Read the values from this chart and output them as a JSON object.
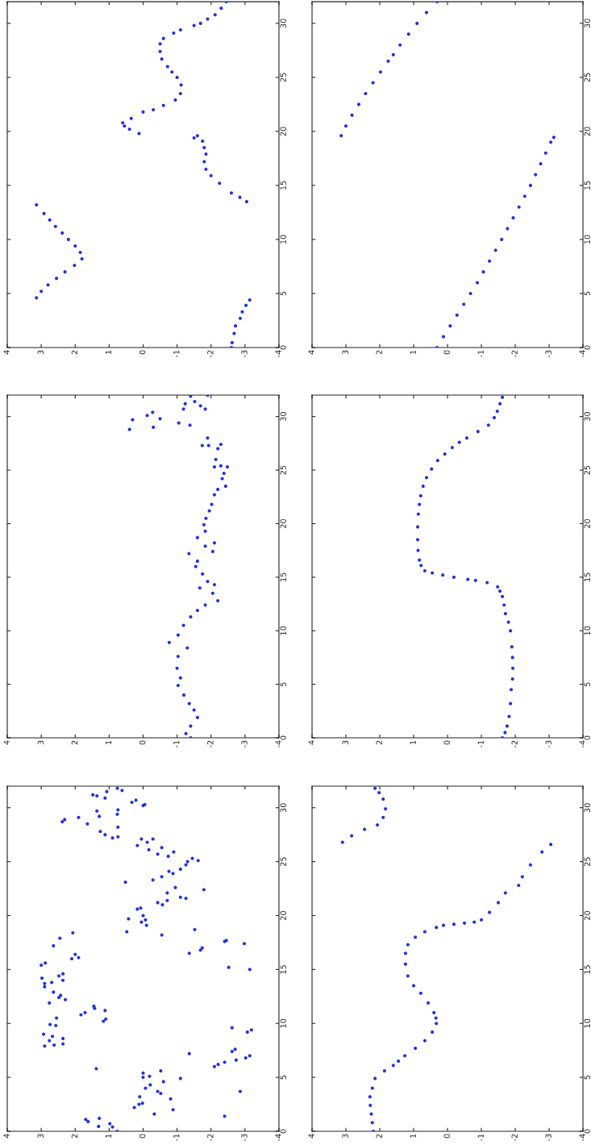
{
  "chart_data": [
    {
      "type": "scatter",
      "color": "#2233dd",
      "marker": "circle",
      "xlim": [
        4,
        -4
      ],
      "ylim": [
        0,
        32
      ],
      "yticks": [
        0,
        5,
        10,
        15,
        20,
        25,
        30
      ],
      "xticks": [
        4,
        3,
        2,
        1,
        0,
        -1,
        -2,
        -3,
        -4
      ],
      "values": [
        0,
        0.45,
        1.3,
        2.0,
        2.7,
        3.3,
        3.9,
        4.4,
        4.6,
        5.2,
        5.8,
        6.4,
        7.0,
        7.6,
        8.2,
        8.8,
        9.4,
        10.0,
        10.6,
        11.2,
        11.8,
        12.4,
        13.2,
        13.5,
        13.9,
        14.3,
        15.2,
        15.9,
        16.5,
        17.2,
        17.9,
        18.5,
        19.1,
        19.4,
        19.6,
        19.8,
        20.2,
        20.5,
        20.8,
        21.2,
        21.8,
        22.0,
        22.4,
        22.9,
        23.5,
        24.3,
        25.0,
        25.5,
        26.0,
        26.7,
        27.4,
        28.1,
        28.6,
        29.1,
        29.4,
        29.8,
        30.0,
        30.4,
        30.8,
        31.4,
        32.0
      ],
      "x": [
        -2.6,
        -2.62,
        -2.68,
        -2.72,
        -2.86,
        -2.92,
        -3.03,
        -3.14,
        3.14,
        3.0,
        2.8,
        2.55,
        2.3,
        2.02,
        1.8,
        1.85,
        2.0,
        2.2,
        2.38,
        2.58,
        2.75,
        2.92,
        3.14,
        -3.05,
        -2.85,
        -2.6,
        -2.25,
        -2.0,
        -1.85,
        -1.8,
        -1.85,
        -1.8,
        -1.75,
        -1.5,
        -1.6,
        0.12,
        0.4,
        0.55,
        0.6,
        0.35,
        0.0,
        -0.3,
        -0.6,
        -0.95,
        -1.1,
        -1.12,
        -1.0,
        -0.85,
        -0.72,
        -0.55,
        -0.5,
        -0.5,
        -0.6,
        -0.9,
        -1.1,
        -1.5,
        -1.69,
        -1.9,
        -2.12,
        -2.3,
        -2.45
      ]
    },
    {
      "type": "scatter",
      "color": "#2233dd",
      "marker": "circle",
      "xlim": [
        4,
        -4
      ],
      "ylim": [
        0,
        32
      ],
      "yticks": [
        0,
        5,
        10,
        15,
        20,
        25,
        30
      ],
      "xticks": [
        4,
        3,
        2,
        1,
        0,
        -1,
        -2,
        -3,
        -4
      ],
      "values": [
        0,
        1,
        2,
        3,
        4,
        5,
        6,
        7,
        8,
        9,
        10,
        11,
        12,
        13,
        14,
        15,
        16,
        17,
        18,
        19,
        19.45,
        19.6,
        20.5,
        21.5,
        22.5,
        23.5,
        24.5,
        25.5,
        26.5,
        27.1,
        28,
        29,
        30,
        31,
        32
      ],
      "x": [
        0.31,
        0.12,
        -0.08,
        -0.28,
        -0.48,
        -0.68,
        -0.88,
        -1.06,
        -1.24,
        -1.42,
        -1.6,
        -1.77,
        -1.94,
        -2.11,
        -2.28,
        -2.45,
        -2.6,
        -2.75,
        -2.9,
        -3.05,
        -3.14,
        3.14,
        3.0,
        2.82,
        2.62,
        2.42,
        2.2,
        1.98,
        1.75,
        1.6,
        1.4,
        1.15,
        0.9,
        0.62,
        0.31
      ]
    },
    {
      "type": "scatter",
      "color": "#2233dd",
      "marker": "circle",
      "xlim": [
        4,
        -4
      ],
      "ylim": [
        0,
        32
      ],
      "yticks": [
        0,
        5,
        10,
        15,
        20,
        25,
        30
      ],
      "xticks": [
        4,
        3,
        2,
        1,
        0,
        -1,
        -2,
        -3,
        -4
      ],
      "values": [
        0.0,
        0.4,
        1.1,
        1.9,
        2.6,
        3.2,
        4.0,
        4.9,
        5.6,
        6.5,
        7.6,
        8.4,
        8.9,
        9.6,
        10.5,
        11.3,
        11.9,
        12.4,
        12.8,
        13.5,
        14.0,
        14.3,
        14.6,
        15.3,
        16.0,
        16.5,
        17.2,
        17.4,
        17.9,
        18.2,
        18.7,
        19.3,
        19.9,
        20.5,
        21.2,
        21.8,
        22.7,
        23.2,
        23.5,
        24.2,
        24.7,
        25.3,
        25.4,
        25.3,
        26.0,
        27.0,
        27.4,
        27.3,
        27.3,
        28.0,
        28.8,
        29.0,
        29.2,
        29.4,
        29.7,
        29.8,
        30.1,
        30.4,
        30.7,
        30.7,
        31.0,
        31.2,
        31.4,
        31.9,
        32.0
      ],
      "x": [
        -1.4,
        -1.26,
        -1.4,
        -1.6,
        -1.5,
        -1.36,
        -1.2,
        -1.03,
        -1.1,
        -1.0,
        -1.03,
        -1.3,
        -0.77,
        -1.03,
        -1.19,
        -1.4,
        -1.6,
        -1.83,
        -2.2,
        -2.05,
        -1.67,
        -2.1,
        -1.9,
        -1.75,
        -1.55,
        -1.6,
        -1.35,
        -2.05,
        -1.83,
        -2.1,
        -1.6,
        -1.83,
        -1.79,
        -1.85,
        -1.95,
        -2.02,
        -2.1,
        -2.2,
        -2.43,
        -2.33,
        -2.38,
        -2.48,
        -2.29,
        -2.1,
        -2.14,
        -2.2,
        -2.29,
        -1.93,
        -1.74,
        -1.9,
        0.4,
        -0.3,
        -1.38,
        -1.05,
        0.31,
        -0.5,
        -0.12,
        -0.28,
        -1.19,
        -1.83,
        -1.69,
        -1.24,
        -1.52,
        -1.4,
        -1.9
      ]
    },
    {
      "type": "scatter",
      "color": "#2233dd",
      "marker": "circle",
      "xlim": [
        4,
        -4
      ],
      "ylim": [
        0,
        32
      ],
      "yticks": [
        0,
        5,
        10,
        15,
        20,
        25,
        30
      ],
      "xticks": [
        4,
        3,
        2,
        1,
        0,
        -1,
        -2,
        -3,
        -4
      ],
      "values": [
        0,
        0.5,
        1.1,
        2,
        3.2,
        4.5,
        5.5,
        6.5,
        7.5,
        8.5,
        10,
        10.8,
        11.6,
        12.4,
        13.2,
        13.7,
        14.1,
        14.5,
        14.7,
        14.8,
        15.0,
        15.2,
        15.4,
        15.6,
        16.1,
        16.6,
        17.5,
        18.5,
        19.7,
        20.9,
        21.8,
        22.6,
        23.5,
        24.3,
        25.1,
        25.9,
        26.5,
        27.1,
        27.6,
        28.0,
        28.6,
        29.2,
        29.9,
        30.5,
        31.2,
        31.8
      ],
      "x": [
        -1.62,
        -1.7,
        -1.76,
        -1.82,
        -1.86,
        -1.88,
        -1.92,
        -1.93,
        -1.92,
        -1.9,
        -1.86,
        -1.8,
        -1.71,
        -1.67,
        -1.62,
        -1.55,
        -1.48,
        -1.17,
        -0.83,
        -0.6,
        -0.19,
        0.14,
        0.45,
        0.67,
        0.78,
        0.83,
        0.87,
        0.88,
        0.88,
        0.86,
        0.83,
        0.79,
        0.72,
        0.62,
        0.47,
        0.29,
        0.08,
        -0.14,
        -0.35,
        -0.57,
        -0.9,
        -1.21,
        -1.38,
        -1.47,
        -1.55,
        -1.62
      ]
    },
    {
      "type": "scatter",
      "color": "#2233dd",
      "marker": "circle",
      "xlim": [
        4,
        -4
      ],
      "ylim": [
        0,
        32
      ],
      "yticks": [
        0,
        5,
        10,
        15,
        20,
        25,
        30
      ],
      "xticks": [
        4,
        3,
        2,
        1,
        0,
        -1,
        -2,
        -3,
        -4
      ],
      "values": [
        0,
        0.4,
        0.7,
        0.45,
        1.2,
        0.9,
        1.1,
        2.2,
        2.5,
        3.2,
        2.6,
        1.6,
        4.0,
        4.3,
        3.7,
        3.5,
        4.6,
        5.6,
        5.1,
        5.4,
        5.0,
        3.0,
        2.0,
        4.9,
        7.2,
        5.8,
        7.9,
        9.0,
        8.4,
        8.0,
        8.8,
        8.6,
        8.1,
        9.8,
        9.9,
        10.5,
        10.8,
        11.0,
        11.6,
        11.4,
        11.2,
        10.2,
        10.4,
        11.9,
        12.4,
        12.6,
        12.2,
        12.9,
        13.4,
        13.7,
        14.2,
        15.4,
        15.6,
        14.4,
        14.6,
        14.0,
        13.8,
        17.2,
        17.9,
        16.0,
        16.4,
        16.1,
        18.4,
        16.5,
        18.7,
        16.8,
        18.5,
        19.7,
        23.1,
        20.6,
        20.7,
        20.0,
        19.4,
        19.1,
        19.6,
        18.2,
        21.2,
        21.0,
        21.4,
        22.1,
        22.6,
        21.7,
        21.6,
        23.3,
        23.6,
        24.1,
        23.9,
        24.3,
        24.7,
        25.0,
        25.3,
        25.1,
        25.7,
        25.5,
        25.9,
        26.3,
        26.1,
        26.8,
        27.1,
        27.1,
        26.5,
        27.2,
        27.3,
        28.2,
        29.4,
        29.8,
        27.5,
        27.8,
        29.7,
        29.2,
        28.5,
        29.1,
        28.9,
        28.7,
        31.2,
        31.1,
        30.9,
        31.5,
        31.8,
        31.6,
        30.5,
        30.7,
        30.2,
        30.3,
        1.4,
        3.7,
        6.0,
        6.2,
        6.4,
        7.4,
        6.6,
        7.6,
        6.8,
        7.0,
        9.2,
        9.4,
        9.6,
        15.2,
        15.0,
        17.6,
        17.7,
        17.4,
        17.0,
        22.4
      ],
      "x": [
        0.76,
        0.9,
        0.98,
        1.31,
        1.29,
        1.62,
        1.69,
        0.26,
        0.12,
        0.1,
        0.02,
        -0.33,
        -0.07,
        -0.21,
        -0.43,
        -0.52,
        -0.6,
        -0.52,
        -0.19,
        0.0,
        0.0,
        -0.81,
        -0.88,
        -1.1,
        -1.36,
        1.38,
        2.9,
        2.93,
        2.76,
        2.62,
        2.67,
        2.36,
        2.36,
        2.57,
        2.74,
        2.55,
        1.83,
        1.71,
        1.45,
        1.43,
        1.12,
        1.17,
        1.1,
        2.76,
        2.48,
        2.43,
        2.29,
        2.64,
        2.9,
        2.9,
        2.98,
        3.0,
        2.88,
        2.48,
        2.36,
        2.36,
        2.69,
        2.64,
        2.45,
        2.1,
        2.0,
        1.9,
        2.07,
        -1.36,
        -1.52,
        -1.69,
        0.48,
        0.43,
        0.52,
        0.17,
        0.07,
        0.0,
        0.05,
        -0.1,
        -0.07,
        -0.55,
        -0.43,
        -0.57,
        -0.71,
        -0.71,
        -0.95,
        -1.1,
        -1.26,
        -0.29,
        -0.55,
        -0.76,
        -0.88,
        -1.1,
        -1.26,
        -1.31,
        -1.45,
        -1.62,
        -0.43,
        -0.74,
        -0.9,
        -0.55,
        -0.17,
        -0.12,
        -0.29,
        0.05,
        0.17,
        0.9,
        0.74,
        0.74,
        0.76,
        0.74,
        1.12,
        1.26,
        1.36,
        1.29,
        1.64,
        1.9,
        2.31,
        2.38,
        1.48,
        1.36,
        1.12,
        1.07,
        0.76,
        0.62,
        0.33,
        0.21,
        0.0,
        -0.05,
        -2.4,
        -2.86,
        -2.1,
        -2.21,
        -2.4,
        -2.62,
        -2.74,
        -2.71,
        -3.02,
        -3.14,
        -3.07,
        -3.19,
        -2.62,
        -2.52,
        -3.14,
        -2.4,
        -2.45,
        -2.98,
        -1.74,
        -1.79
      ]
    },
    {
      "type": "scatter",
      "color": "#2233dd",
      "marker": "circle",
      "xlim": [
        4,
        -4
      ],
      "ylim": [
        0,
        32
      ],
      "yticks": [
        0,
        5,
        10,
        15,
        20,
        25,
        30
      ],
      "xticks": [
        4,
        3,
        2,
        1,
        0,
        -1,
        -2,
        -3,
        -4
      ],
      "values": [
        0,
        0.8,
        1.6,
        2.4,
        3.2,
        4.0,
        4.9,
        5.6,
        6.1,
        6.5,
        7.0,
        7.7,
        8.4,
        9.2,
        10.0,
        10.5,
        11.0,
        11.9,
        12.8,
        13.5,
        14.4,
        15.5,
        16.5,
        17.3,
        18.0,
        18.5,
        18.9,
        19.1,
        19.2,
        19.3,
        19.4,
        19.6,
        20.3,
        21.2,
        22.1,
        22.8,
        23.6,
        24.7,
        25.9,
        26.6,
        26.8,
        27.4,
        28.0,
        28.4,
        29.1,
        29.9,
        30.8,
        31.4,
        31.8
      ],
      "x": [
        2.19,
        2.22,
        2.25,
        2.28,
        2.29,
        2.22,
        2.14,
        1.86,
        1.6,
        1.45,
        1.26,
        0.95,
        0.67,
        0.45,
        0.33,
        0.34,
        0.4,
        0.57,
        0.79,
        1.0,
        1.17,
        1.24,
        1.24,
        1.17,
        0.95,
        0.67,
        0.33,
        0.12,
        -0.19,
        -0.5,
        -0.79,
        -1.0,
        -1.24,
        -1.5,
        -1.71,
        -2.1,
        -2.21,
        -2.45,
        -2.79,
        -3.05,
        3.1,
        2.83,
        2.45,
        2.07,
        1.9,
        1.83,
        1.9,
        2.02,
        2.14
      ]
    }
  ]
}
